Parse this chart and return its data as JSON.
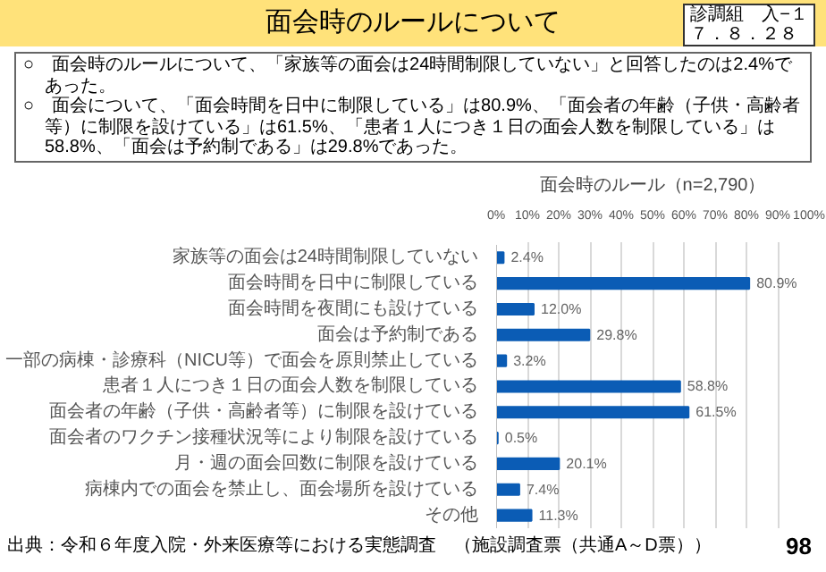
{
  "chart_data": {
    "type": "bar",
    "orientation": "horizontal",
    "title": "面会時のルールについて",
    "subtitle": "面会時のルール（n=2,790）",
    "annotations": [
      "診調組　入−１",
      "７．８．２８",
      "○　面会時のルールについて、「家族等の面会は24時間制限していない」と回答したのは2.4%であった。",
      "○　面会について、「面会時間を日中に制限している」は80.9%、「面会者の年齢（子供・高齢者等）に制限を設けている」は61.5%、「患者１人につき１日の面会人数を制限している」は58.8%、「面会は予約制である」は29.8%であった。",
      "出典：令和６年度入院・外来医療等における実態調査　（施設調査票（共通A～D票））",
      "98"
    ],
    "categories": [
      "家族等の面会は24時間制限していない",
      "面会時間を日中に制限している",
      "面会時間を夜間にも設けている",
      "面会は予約制である",
      "一部の病棟・診療科（NICU等）で面会を原則禁止している",
      "患者１人につき１日の面会人数を制限している",
      "面会者の年齢（子供・高齢者等）に制限を設けている",
      "面会者のワクチン接種状況等により制限を設けている",
      "月・週の面会回数に制限を設けている",
      "病棟内での面会を禁止し、面会場所を設けている",
      "その他"
    ],
    "values": [
      2.4,
      80.9,
      12.0,
      29.8,
      3.2,
      58.8,
      61.5,
      0.5,
      20.1,
      7.4,
      11.3
    ],
    "value_labels": [
      "2.4%",
      "80.9%",
      "12.0%",
      "29.8%",
      "3.2%",
      "58.8%",
      "61.5%",
      "0.5%",
      "20.1%",
      "7.4%",
      "11.3%"
    ],
    "color": "#0b5cb5",
    "xlim": [
      0,
      100
    ],
    "xticks": [
      {
        "value": 0,
        "label": "0%"
      },
      {
        "value": 10,
        "label": "10%"
      },
      {
        "value": 20,
        "label": "20%"
      },
      {
        "value": 30,
        "label": "30%"
      },
      {
        "value": 40,
        "label": "40%"
      },
      {
        "value": 50,
        "label": "50%"
      },
      {
        "value": 60,
        "label": "60%"
      },
      {
        "value": 70,
        "label": "70%"
      },
      {
        "value": 80,
        "label": "80%"
      },
      {
        "value": 90,
        "label": "90%"
      },
      {
        "value": 100,
        "label": "100%"
      }
    ],
    "grid": "x"
  }
}
